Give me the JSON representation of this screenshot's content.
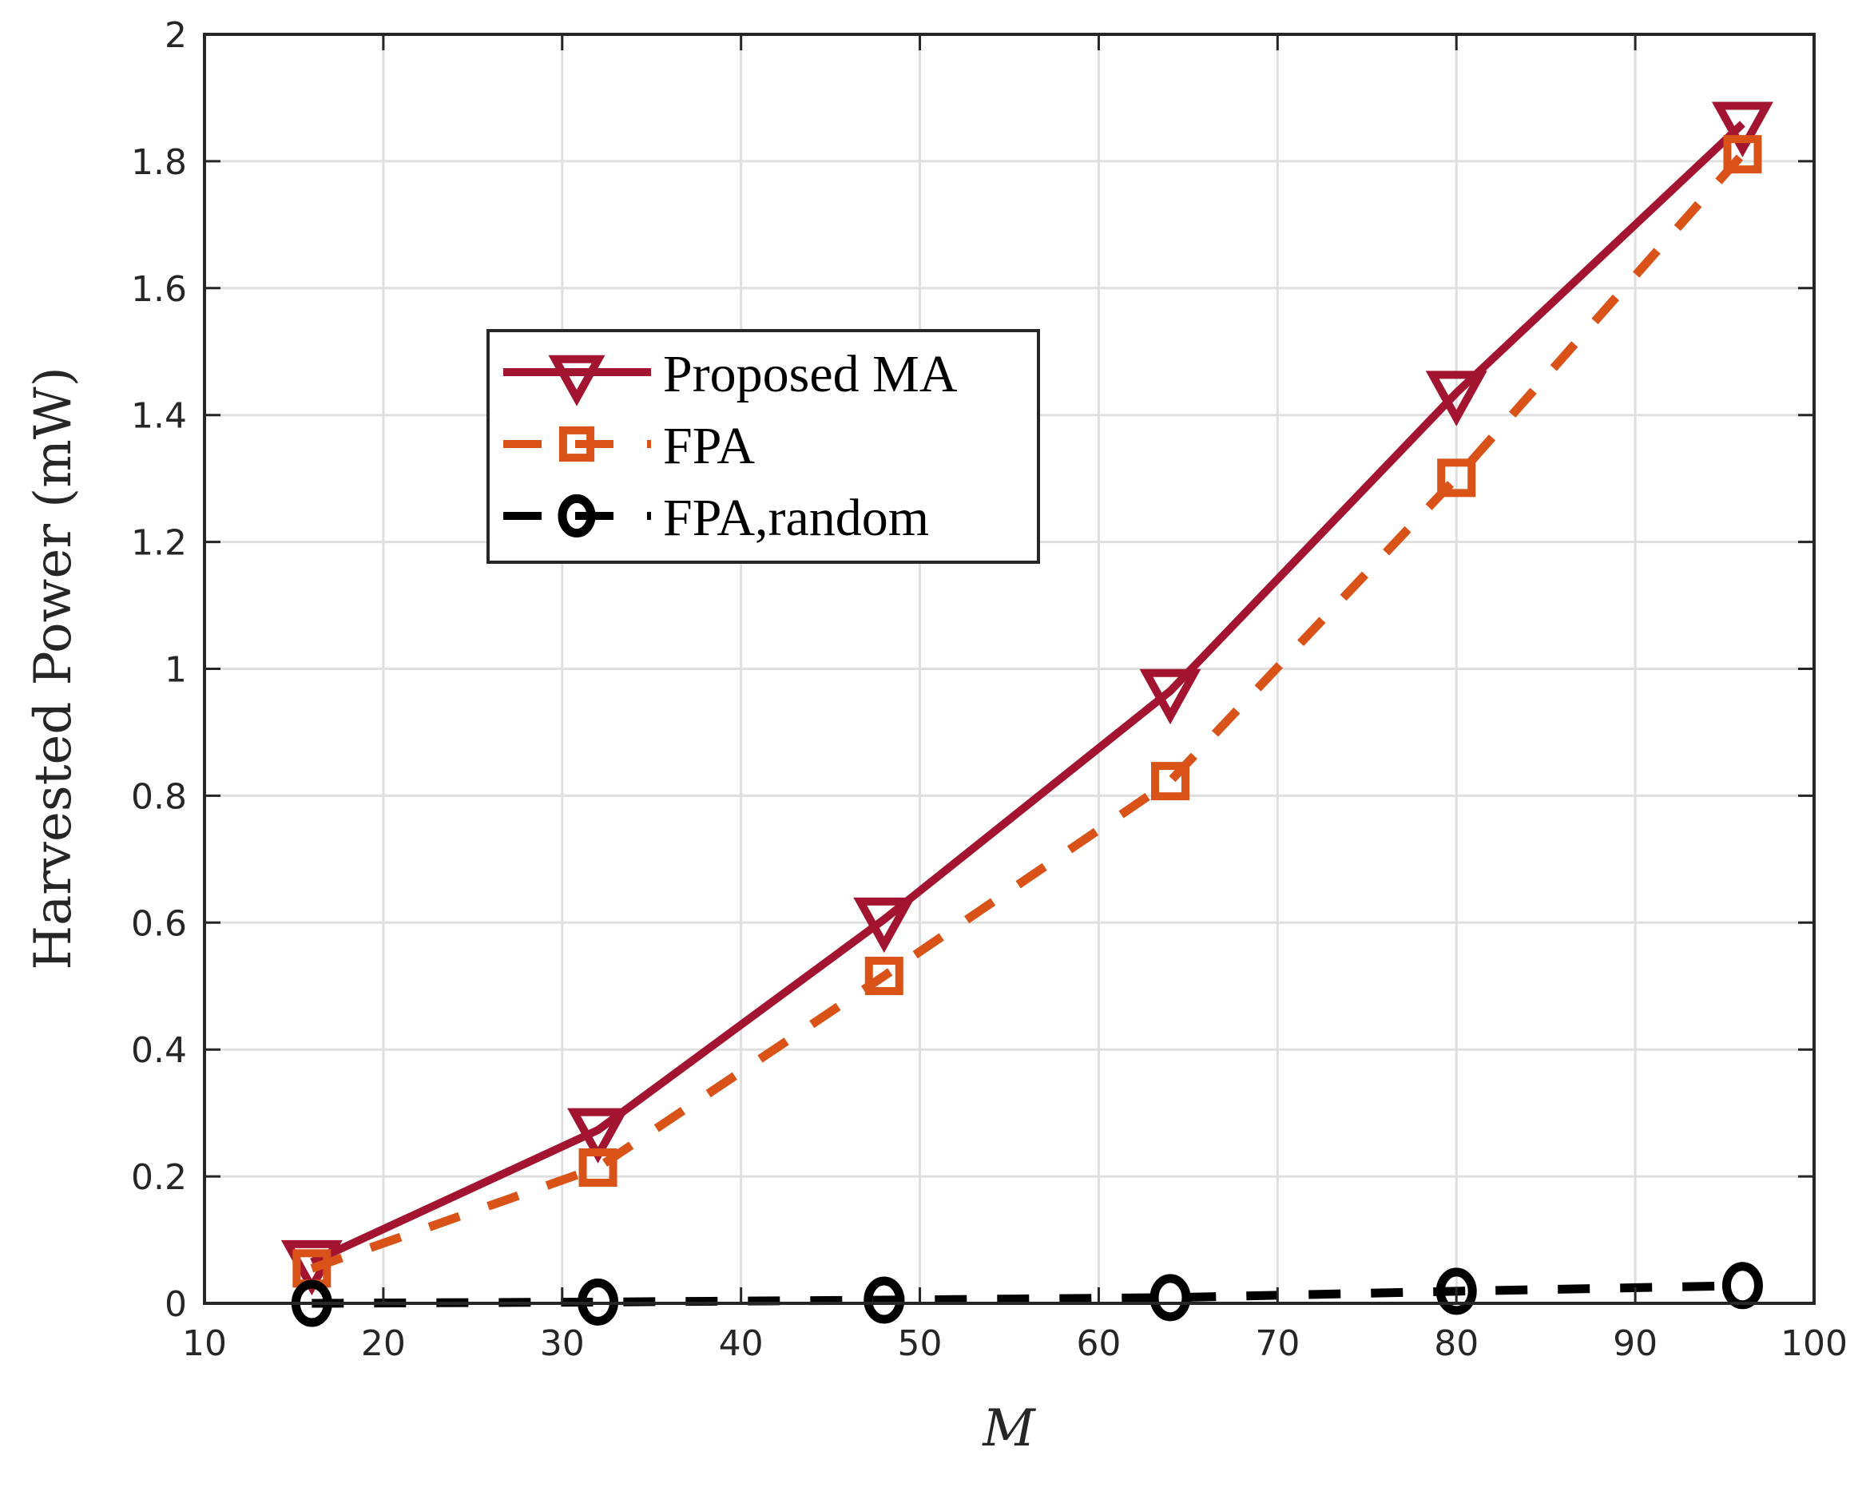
{
  "chart_data": {
    "type": "line",
    "title": "",
    "xlabel": "M",
    "ylabel": "Harvested Power (mW)",
    "xlim": [
      10,
      100
    ],
    "ylim": [
      0,
      2
    ],
    "xticks": [
      10,
      20,
      30,
      40,
      50,
      60,
      70,
      80,
      90,
      100
    ],
    "yticks": [
      0,
      0.2,
      0.4,
      0.6,
      0.8,
      1,
      1.2,
      1.4,
      1.6,
      1.8,
      2
    ],
    "xtick_labels": [
      "10",
      "20",
      "30",
      "40",
      "50",
      "60",
      "70",
      "80",
      "90",
      "100"
    ],
    "ytick_labels": [
      "0",
      "0.2",
      "0.4",
      "0.6",
      "0.8",
      "1",
      "1.2",
      "1.4",
      "1.6",
      "1.8",
      "2"
    ],
    "grid": true,
    "legend_position": "upper left (inside)",
    "x": [
      16,
      32,
      48,
      64,
      80,
      96
    ],
    "series": [
      {
        "name": "Proposed MA",
        "values": [
          0.065,
          0.273,
          0.605,
          0.965,
          1.435,
          1.859
        ],
        "color": "#A2142F",
        "linestyle": "solid",
        "marker": "triangle-down"
      },
      {
        "name": "FPA",
        "values": [
          0.055,
          0.214,
          0.516,
          0.823,
          1.301,
          1.811
        ],
        "color": "#D95319",
        "linestyle": "dashed",
        "marker": "square"
      },
      {
        "name": "FPA,random",
        "values": [
          0.0,
          0.002,
          0.005,
          0.009,
          0.019,
          0.028
        ],
        "color": "#000000",
        "linestyle": "dashed",
        "marker": "circle"
      }
    ]
  },
  "colors": {
    "axis": "#262626",
    "grid": "#DFDFDF",
    "background": "#FFFFFF"
  }
}
